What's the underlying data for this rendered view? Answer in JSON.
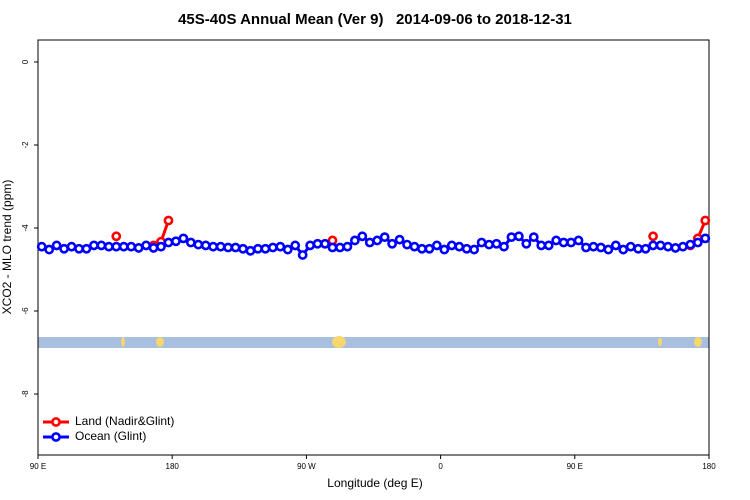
{
  "chart_data": {
    "type": "line",
    "title": "45S-40S Annual Mean (Ver 9)   2014-09-06 to 2018-12-31",
    "x_label": "Longitude (deg E)",
    "y_label": "XCO2 - MLO trend (ppm)",
    "xlim": [
      90,
      540
    ],
    "ylim": [
      -9.47,
      0.53
    ],
    "xticks": [
      {
        "value": 90,
        "label": "90 E"
      },
      180,
      {
        "value": 270,
        "label": "90 W"
      },
      {
        "value": 360,
        "label": "0"
      },
      {
        "value": 450,
        "label": "90 E"
      },
      {
        "value": 540,
        "label": "180"
      }
    ],
    "yticks": [
      0,
      -2,
      -4,
      -6,
      -8
    ],
    "legend": "bottom-left",
    "x": [
      92.5,
      97.5,
      102.5,
      107.5,
      112.5,
      117.5,
      122.5,
      127.5,
      132.5,
      137.5,
      142.5,
      147.5,
      152.5,
      157.5,
      162.5,
      167.5,
      172.5,
      177.5,
      182.5,
      187.5,
      192.5,
      197.5,
      202.5,
      207.5,
      212.5,
      217.5,
      222.5,
      227.5,
      232.5,
      237.5,
      242.5,
      247.5,
      252.5,
      257.5,
      262.5,
      267.5,
      272.5,
      277.5,
      282.5,
      287.5,
      292.5,
      297.5,
      302.5,
      307.5,
      312.5,
      317.5,
      322.5,
      327.5,
      332.5,
      337.5,
      342.5,
      347.5,
      352.5,
      357.5,
      362.5,
      367.5,
      372.5,
      377.5,
      382.5,
      387.5,
      392.5,
      397.5,
      402.5,
      407.5,
      412.5,
      417.5,
      422.5,
      427.5,
      432.5,
      437.5,
      442.5,
      447.5,
      452.5,
      457.5,
      462.5,
      467.5,
      472.5,
      477.5,
      482.5,
      487.5,
      492.5,
      497.5,
      502.5,
      507.5,
      512.5,
      517.5,
      522.5,
      527.5,
      532.5,
      537.5
    ],
    "series": [
      {
        "name": "Land (Nadir&Glint)",
        "color": "#ff0000",
        "values": [
          null,
          null,
          null,
          null,
          null,
          null,
          null,
          null,
          null,
          null,
          -4.2,
          null,
          null,
          null,
          null,
          -4.42,
          -4.33,
          -3.82,
          null,
          null,
          null,
          null,
          null,
          null,
          null,
          null,
          null,
          null,
          null,
          null,
          null,
          null,
          null,
          null,
          null,
          null,
          null,
          null,
          null,
          -4.3,
          null,
          null,
          null,
          null,
          null,
          null,
          null,
          null,
          null,
          null,
          null,
          null,
          null,
          null,
          null,
          null,
          null,
          null,
          null,
          null,
          null,
          null,
          null,
          null,
          null,
          null,
          null,
          null,
          null,
          null,
          null,
          null,
          null,
          null,
          null,
          null,
          null,
          null,
          null,
          null,
          null,
          null,
          -4.2,
          null,
          null,
          null,
          null,
          -4.42,
          -4.25,
          -3.82
        ]
      },
      {
        "name": "Ocean (Glint)",
        "color": "#0000ff",
        "values": [
          -4.45,
          -4.52,
          -4.42,
          -4.5,
          -4.45,
          -4.5,
          -4.5,
          -4.42,
          -4.42,
          -4.45,
          -4.45,
          -4.45,
          -4.45,
          -4.48,
          -4.42,
          -4.48,
          -4.45,
          -4.35,
          -4.32,
          -4.25,
          -4.35,
          -4.4,
          -4.42,
          -4.45,
          -4.45,
          -4.47,
          -4.47,
          -4.5,
          -4.55,
          -4.5,
          -4.5,
          -4.47,
          -4.45,
          -4.52,
          -4.42,
          -4.65,
          -4.42,
          -4.38,
          -4.38,
          -4.47,
          -4.47,
          -4.45,
          -4.3,
          -4.2,
          -4.35,
          -4.3,
          -4.22,
          -4.38,
          -4.28,
          -4.4,
          -4.45,
          -4.5,
          -4.5,
          -4.42,
          -4.52,
          -4.42,
          -4.45,
          -4.5,
          -4.52,
          -4.35,
          -4.4,
          -4.38,
          -4.45,
          -4.22,
          -4.2,
          -4.38,
          -4.22,
          -4.42,
          -4.42,
          -4.3,
          -4.35,
          -4.35,
          -4.3,
          -4.47,
          -4.45,
          -4.47,
          -4.52,
          -4.42,
          -4.52,
          -4.45,
          -4.5,
          -4.5,
          -4.42,
          -4.42,
          -4.45,
          -4.48,
          -4.45,
          -4.4,
          -4.35,
          -4.25
        ]
      }
    ]
  }
}
